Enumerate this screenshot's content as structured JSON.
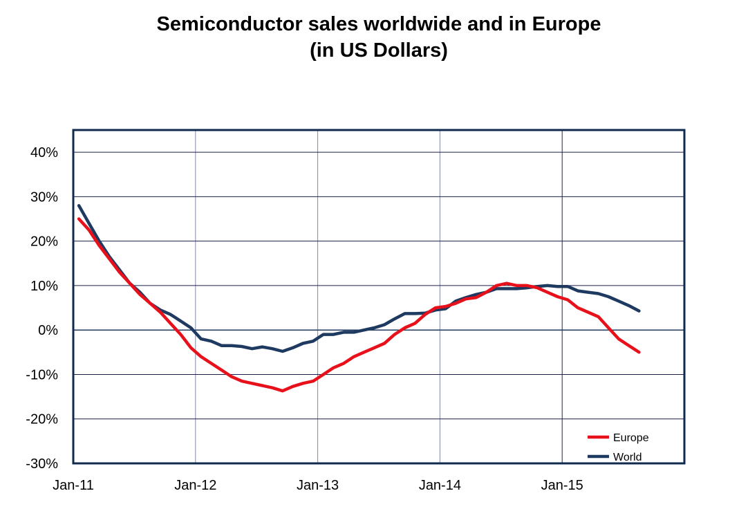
{
  "chart_data": {
    "type": "line",
    "title": "Semiconductor sales worldwide and in Europe",
    "subtitle": "(in US Dollars)",
    "xlabel": "",
    "ylabel": "",
    "ylim": [
      -30,
      45
    ],
    "y_ticks": [
      -30,
      -20,
      -10,
      0,
      10,
      20,
      30,
      40
    ],
    "y_tick_labels": [
      "-30%",
      "-20%",
      "-10%",
      "0%",
      "10%",
      "20%",
      "30%",
      "40%"
    ],
    "x_tick_labels": [
      "Jan-11",
      "Jan-12",
      "Jan-13",
      "Jan-14",
      "Jan-15"
    ],
    "x_start": "Jan-11",
    "x_end": "Aug-15",
    "x_months_total": 60,
    "grid": true,
    "legend_position": "bottom-right",
    "series": [
      {
        "name": "Europe",
        "color": "#e8101a",
        "values": [
          25,
          22.5,
          19,
          16,
          13,
          10.5,
          8,
          6,
          4,
          1.5,
          -1,
          -4,
          -6,
          -7.5,
          -9,
          -10.5,
          -11.5,
          -12,
          -12.5,
          -13,
          -13.7,
          -12.7,
          -12,
          -11.5,
          -10,
          -8.5,
          -7.5,
          -6,
          -5,
          -4,
          -3,
          -1,
          0.5,
          1.5,
          3.5,
          5,
          5.3,
          6,
          7,
          7.3,
          8.5,
          10,
          10.5,
          10,
          10,
          9.5,
          8.5,
          7.5,
          6.8,
          5,
          4,
          3,
          0.5,
          -2,
          -3.5,
          -5
        ]
      },
      {
        "name": "World",
        "color": "#1f3a60",
        "values": [
          28,
          24,
          20,
          16.5,
          13.5,
          10.5,
          8.5,
          6,
          4.5,
          3.5,
          2,
          0.5,
          -2,
          -2.5,
          -3.5,
          -3.5,
          -3.7,
          -4.2,
          -3.8,
          -4.2,
          -4.8,
          -4,
          -3,
          -2.5,
          -1,
          -1,
          -0.5,
          -0.5,
          0,
          0.5,
          1.2,
          2.5,
          3.7,
          3.7,
          3.8,
          4.5,
          4.8,
          6.5,
          7.3,
          8,
          8.5,
          9.3,
          9.3,
          9.3,
          9.5,
          9.8,
          10,
          9.8,
          9.8,
          8.8,
          8.5,
          8.2,
          7.5,
          6.5,
          5.5,
          4.3
        ]
      }
    ]
  }
}
